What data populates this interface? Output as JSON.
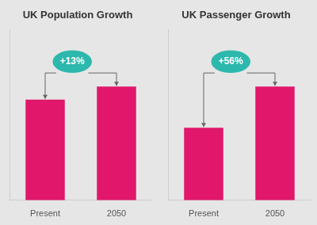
{
  "chart_data": [
    {
      "type": "bar",
      "title": "UK Population Growth",
      "categories": [
        "Present",
        "2050"
      ],
      "values": [
        0.62,
        0.7
      ],
      "color": "#e0176a",
      "ylim": [
        0,
        1.05
      ],
      "grid": false,
      "tick_labels": "x",
      "annotations": [
        "+13%"
      ]
    },
    {
      "type": "bar",
      "title": "UK Passenger Growth",
      "categories": [
        "Present",
        "2050"
      ],
      "values": [
        0.44,
        0.69
      ],
      "color": "#e0176a",
      "ylim": [
        0,
        1.035
      ],
      "grid": false,
      "tick_labels": "x",
      "annotations": [
        "+56%"
      ]
    }
  ]
}
